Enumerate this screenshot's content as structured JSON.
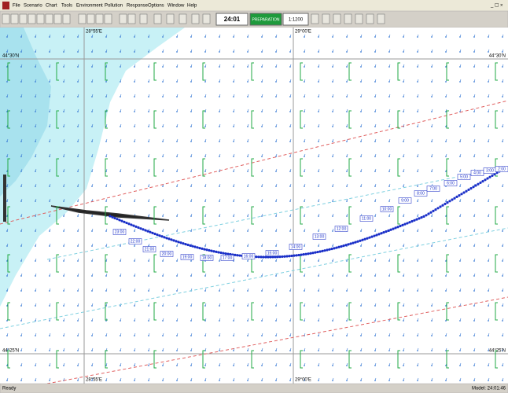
{
  "menu": [
    "File",
    "Scenario",
    "Chart",
    "Tools",
    "Environment",
    "Pollution",
    "Response",
    "Options",
    "Window",
    "Help"
  ],
  "toolbar": {
    "clock": "24:01",
    "mode": "PREPARATION",
    "scale": "1:1200"
  },
  "map": {
    "lat_labels": [
      "44°30'N",
      "44°25'N"
    ],
    "lon_labels": [
      "28°55'E",
      "29°00'E"
    ],
    "track_labels": [
      "23:00",
      "22:00",
      "21:00",
      "20:00",
      "19:00",
      "18:00",
      "17:00",
      "16:00",
      "15:00",
      "14:00",
      "13:00",
      "12:00",
      "11:00",
      "10:00",
      "9:00",
      "8:00",
      "7:00",
      "6:00",
      "5:00",
      "4:00",
      "3:00",
      "2:00"
    ]
  },
  "status_bar": {
    "left": "Ready",
    "right": "Model: 24:01:46"
  }
}
